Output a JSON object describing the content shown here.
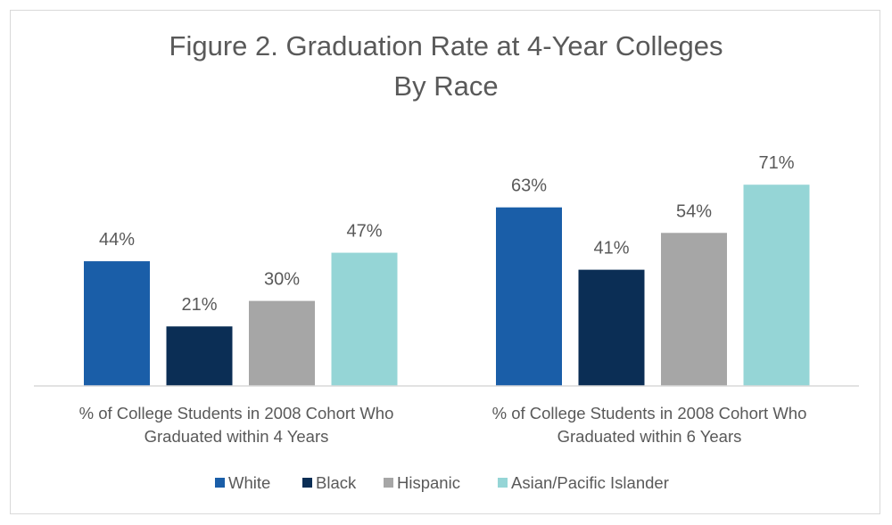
{
  "chart_data": {
    "type": "bar",
    "title": [
      "Figure 2. Graduation Rate at 4-Year Colleges",
      "By Race"
    ],
    "categories": [
      [
        "% of College Students in 2008 Cohort Who",
        "Graduated within 4 Years"
      ],
      [
        "% of College Students in 2008 Cohort Who",
        "Graduated within 6 Years"
      ]
    ],
    "series": [
      {
        "name": "White",
        "color": "#1a5ea8",
        "values": [
          44,
          63
        ],
        "labels": [
          "44%",
          "63%"
        ]
      },
      {
        "name": "Black",
        "color": "#0b2e55",
        "values": [
          21,
          41
        ],
        "labels": [
          "21%",
          "41%"
        ]
      },
      {
        "name": "Hispanic",
        "color": "#a6a6a6",
        "values": [
          30,
          54
        ],
        "labels": [
          "30%",
          "54%"
        ]
      },
      {
        "name": "Asian/Pacific Islander",
        "color": "#95d5d6",
        "values": [
          47,
          71
        ],
        "labels": [
          "47%",
          "71%"
        ]
      }
    ],
    "xlabel": "",
    "ylabel": "",
    "ylim": [
      0,
      100
    ],
    "grid": false,
    "legend_position": "bottom"
  }
}
